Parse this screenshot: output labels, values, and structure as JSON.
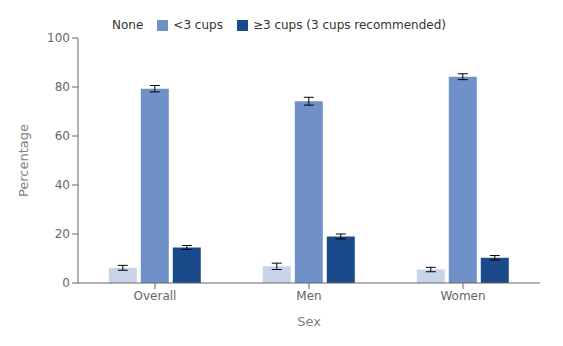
{
  "chart_data": {
    "type": "bar",
    "categories": [
      "Overall",
      "Men",
      "Women"
    ],
    "series": [
      {
        "name": "None",
        "color": "#c8d4e8",
        "values": [
          6.2,
          6.8,
          5.5
        ],
        "errors": [
          1.0,
          1.3,
          0.9
        ]
      },
      {
        "name": "<3 cups",
        "color": "#7090c8",
        "values": [
          79.3,
          74.2,
          84.2
        ],
        "errors": [
          1.3,
          1.6,
          1.2
        ]
      },
      {
        "name": "≥3 cups (3 cups recommended)",
        "color": "#1a4a8a",
        "values": [
          14.5,
          19.0,
          10.3
        ],
        "errors": [
          0.8,
          1.0,
          0.9
        ]
      }
    ],
    "xlabel": "Sex",
    "ylabel": "Percentage",
    "ylim": [
      0,
      100
    ],
    "yticks": [
      0,
      20,
      40,
      60,
      80,
      100
    ],
    "grid": false,
    "legend": "top"
  }
}
